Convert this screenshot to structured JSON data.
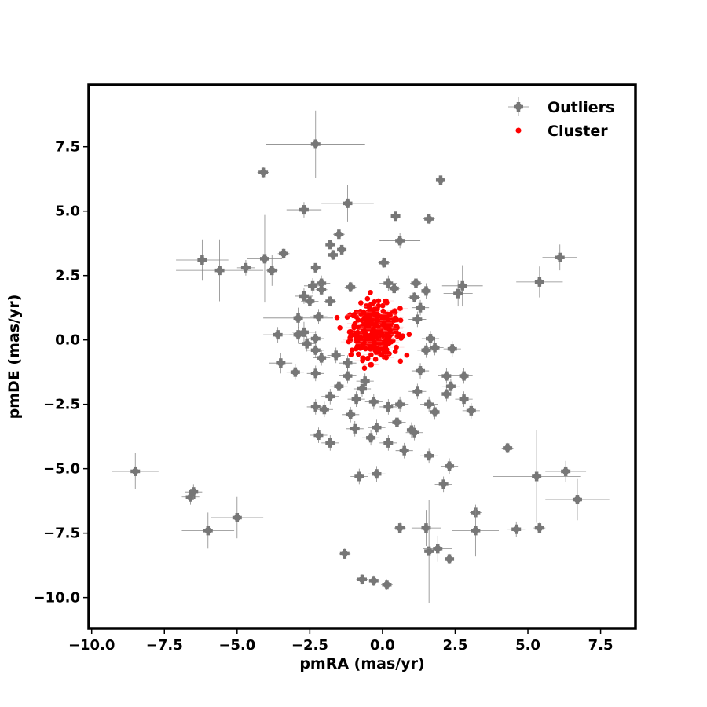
{
  "chart_data": {
    "type": "scatter",
    "xlabel": "pmRA (mas/yr)",
    "ylabel": "pmDE (mas/yr)",
    "xlim": [
      -10.1,
      8.7
    ],
    "ylim": [
      -11.2,
      9.9
    ],
    "xticks": [
      -10.0,
      -7.5,
      -5.0,
      -2.5,
      0.0,
      2.5,
      5.0,
      7.5
    ],
    "xtick_labels": [
      "−10.0",
      "−7.5",
      "−5.0",
      "−2.5",
      "0.0",
      "2.5",
      "5.0",
      "7.5"
    ],
    "yticks": [
      -10.0,
      -7.5,
      -5.0,
      -2.5,
      0.0,
      2.5,
      5.0,
      7.5
    ],
    "ytick_labels": [
      "−10.0",
      "−7.5",
      "−5.0",
      "−2.5",
      "0.0",
      "2.5",
      "5.0",
      "7.5"
    ],
    "grid": false,
    "legend_position": "top-right",
    "series": [
      {
        "name": "Outliers",
        "color": "#777777",
        "marker": "plus-with-errorbars",
        "points": [
          [
            -2.3,
            7.6,
            1.7,
            1.3
          ],
          [
            -4.1,
            6.5,
            0.2,
            0.2
          ],
          [
            2.0,
            6.2,
            0.1,
            0.1
          ],
          [
            -2.7,
            5.05,
            0.6,
            0.3
          ],
          [
            -1.2,
            5.3,
            0.9,
            0.7
          ],
          [
            0.45,
            4.8,
            0.1,
            0.1
          ],
          [
            1.6,
            4.7,
            0.2,
            0.2
          ],
          [
            -1.5,
            4.1,
            0.2,
            0.2
          ],
          [
            0.6,
            3.85,
            0.7,
            0.3
          ],
          [
            -1.8,
            3.7,
            0.1,
            0.1
          ],
          [
            -1.4,
            3.5,
            0.1,
            0.1
          ],
          [
            -1.7,
            3.3,
            0.2,
            0.2
          ],
          [
            -3.4,
            3.35,
            0.2,
            0.2
          ],
          [
            -6.2,
            3.1,
            0.9,
            0.8
          ],
          [
            -4.05,
            3.15,
            0.6,
            1.7
          ],
          [
            0.05,
            3.0,
            0.2,
            0.2
          ],
          [
            -5.6,
            2.7,
            1.5,
            1.2
          ],
          [
            -4.7,
            2.8,
            0.3,
            0.3
          ],
          [
            -3.8,
            2.7,
            0.2,
            0.6
          ],
          [
            -2.3,
            2.8,
            0.1,
            0.1
          ],
          [
            6.1,
            3.2,
            0.6,
            0.5
          ],
          [
            5.4,
            2.25,
            0.8,
            0.6
          ],
          [
            -2.4,
            2.1,
            0.3,
            0.3
          ],
          [
            -2.1,
            2.2,
            0.3,
            0.3
          ],
          [
            0.2,
            2.2,
            0.3,
            0.3
          ],
          [
            1.15,
            2.2,
            0.2,
            0.2
          ],
          [
            2.75,
            2.1,
            0.7,
            0.8
          ],
          [
            -2.1,
            1.95,
            0.2,
            0.2
          ],
          [
            -1.1,
            2.05,
            0.2,
            0.2
          ],
          [
            0.4,
            2.0,
            0.2,
            0.2
          ],
          [
            1.5,
            1.9,
            0.3,
            0.3
          ],
          [
            2.6,
            1.8,
            0.5,
            0.5
          ],
          [
            -2.7,
            1.7,
            0.3,
            0.3
          ],
          [
            -2.5,
            1.5,
            0.3,
            0.3
          ],
          [
            -1.8,
            1.5,
            0.2,
            0.2
          ],
          [
            1.1,
            1.65,
            0.2,
            0.2
          ],
          [
            -2.9,
            0.85,
            1.2,
            0.4
          ],
          [
            -2.2,
            0.9,
            0.3,
            0.3
          ],
          [
            -2.7,
            0.3,
            0.4,
            0.4
          ],
          [
            -2.9,
            0.2,
            0.3,
            0.3
          ],
          [
            -2.6,
            -0.15,
            0.3,
            0.3
          ],
          [
            -2.3,
            0.05,
            0.3,
            0.3
          ],
          [
            -3.6,
            0.2,
            0.5,
            0.3
          ],
          [
            -2.3,
            -0.4,
            0.3,
            0.3
          ],
          [
            -3.5,
            -0.9,
            0.4,
            0.4
          ],
          [
            -3.0,
            -1.25,
            0.3,
            0.3
          ],
          [
            -2.3,
            -1.3,
            0.3,
            0.3
          ],
          [
            -2.1,
            -0.7,
            0.3,
            0.3
          ],
          [
            -1.6,
            -0.6,
            0.3,
            0.3
          ],
          [
            -1.2,
            -0.9,
            0.3,
            0.3
          ],
          [
            -1.2,
            -1.4,
            0.3,
            0.3
          ],
          [
            -0.6,
            -1.6,
            0.3,
            0.3
          ],
          [
            -1.5,
            -1.8,
            0.3,
            0.3
          ],
          [
            -0.7,
            -1.9,
            0.3,
            0.3
          ],
          [
            -1.8,
            -2.2,
            0.3,
            0.3
          ],
          [
            -0.9,
            -2.3,
            0.3,
            0.3
          ],
          [
            -0.3,
            -2.4,
            0.3,
            0.3
          ],
          [
            -2.3,
            -2.6,
            0.3,
            0.3
          ],
          [
            -2.0,
            -2.7,
            0.3,
            0.3
          ],
          [
            -1.1,
            -2.9,
            0.3,
            0.3
          ],
          [
            0.6,
            -2.5,
            0.3,
            0.3
          ],
          [
            0.2,
            -2.6,
            0.3,
            0.3
          ],
          [
            1.2,
            -2.0,
            0.3,
            0.3
          ],
          [
            1.6,
            -2.5,
            0.3,
            0.3
          ],
          [
            1.8,
            -2.8,
            0.3,
            0.3
          ],
          [
            2.2,
            -2.1,
            0.3,
            0.3
          ],
          [
            2.8,
            -2.3,
            0.3,
            0.3
          ],
          [
            3.05,
            -2.75,
            0.3,
            0.3
          ],
          [
            2.35,
            -1.8,
            0.3,
            0.3
          ],
          [
            1.3,
            -1.2,
            0.3,
            0.3
          ],
          [
            1.5,
            -0.4,
            0.3,
            0.3
          ],
          [
            1.8,
            -0.3,
            0.3,
            0.3
          ],
          [
            2.4,
            -0.35,
            0.3,
            0.3
          ],
          [
            2.2,
            -1.4,
            0.3,
            0.3
          ],
          [
            2.8,
            -1.4,
            0.3,
            0.3
          ],
          [
            1.2,
            0.8,
            0.3,
            0.3
          ],
          [
            1.3,
            1.25,
            0.3,
            0.3
          ],
          [
            1.65,
            0.05,
            0.3,
            0.3
          ],
          [
            -2.2,
            -3.7,
            0.3,
            0.3
          ],
          [
            -1.8,
            -4.0,
            0.3,
            0.3
          ],
          [
            -0.95,
            -3.45,
            0.3,
            0.3
          ],
          [
            -0.4,
            -3.8,
            0.3,
            0.3
          ],
          [
            -0.2,
            -3.4,
            0.3,
            0.3
          ],
          [
            0.2,
            -4.0,
            0.3,
            0.3
          ],
          [
            0.5,
            -3.2,
            0.3,
            0.3
          ],
          [
            0.75,
            -4.3,
            0.3,
            0.3
          ],
          [
            1.0,
            -3.5,
            0.3,
            0.3
          ],
          [
            1.1,
            -3.6,
            0.3,
            0.3
          ],
          [
            1.6,
            -4.5,
            0.3,
            0.3
          ],
          [
            2.3,
            -4.9,
            0.3,
            0.3
          ],
          [
            2.1,
            -5.6,
            0.3,
            0.3
          ],
          [
            -0.8,
            -5.3,
            0.3,
            0.3
          ],
          [
            -0.2,
            -5.2,
            0.3,
            0.3
          ],
          [
            4.3,
            -4.2,
            0.2,
            0.2
          ],
          [
            5.3,
            -5.3,
            1.5,
            1.8
          ],
          [
            6.3,
            -5.1,
            0.7,
            0.4
          ],
          [
            6.7,
            -6.2,
            1.1,
            0.8
          ],
          [
            -8.5,
            -5.1,
            0.8,
            0.7
          ],
          [
            -6.6,
            -6.1,
            0.3,
            0.3
          ],
          [
            -6.5,
            -5.9,
            0.3,
            0.3
          ],
          [
            -6.0,
            -7.4,
            0.9,
            0.7
          ],
          [
            -5.0,
            -6.9,
            0.9,
            0.8
          ],
          [
            3.2,
            -6.7,
            0.2,
            0.2
          ],
          [
            0.6,
            -7.3,
            0.2,
            0.2
          ],
          [
            1.5,
            -7.3,
            0.5,
            0.7
          ],
          [
            3.2,
            -7.4,
            0.8,
            1.0
          ],
          [
            4.6,
            -7.35,
            0.3,
            0.3
          ],
          [
            5.4,
            -7.3,
            0.2,
            0.2
          ],
          [
            1.6,
            -8.2,
            0.6,
            2.0
          ],
          [
            1.9,
            -8.1,
            0.5,
            0.5
          ],
          [
            2.3,
            -8.5,
            0.2,
            0.2
          ],
          [
            -1.3,
            -8.3,
            0.2,
            0.2
          ],
          [
            -0.7,
            -9.3,
            0.2,
            0.2
          ],
          [
            -0.3,
            -9.35,
            0.2,
            0.2
          ],
          [
            0.15,
            -9.5,
            0.2,
            0.2
          ]
        ]
      },
      {
        "name": "Cluster",
        "color": "#ff0000",
        "marker": "dot",
        "center": [
          -0.25,
          0.35
        ],
        "spread": [
          0.42,
          0.5
        ],
        "count": 400
      }
    ]
  }
}
